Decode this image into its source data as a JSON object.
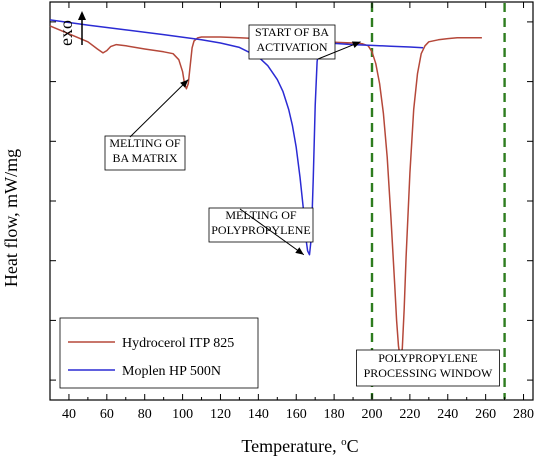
{
  "chart_data": {
    "type": "line",
    "xlabel": "Temperature, ",
    "xlabel_unit": "C",
    "xlabel_degree": "o",
    "ylabel": "Heat flow, mW/mg",
    "exo_label": "exo",
    "xlim": [
      30,
      285
    ],
    "ylim": [
      0,
      10
    ],
    "x_ticks": [
      40,
      60,
      80,
      100,
      120,
      140,
      160,
      180,
      200,
      220,
      240,
      260,
      280
    ],
    "y_ticks_unlabeled": true,
    "grid": false,
    "legend_position": "bottom-left",
    "series": [
      {
        "name": "Hydrocerol ITP 825",
        "color": "#b5483a",
        "x": [
          30,
          40,
          50,
          55,
          58,
          60,
          62,
          65,
          70,
          80,
          90,
          95,
          98,
          100,
          101,
          102,
          103,
          104,
          105,
          106,
          108,
          110,
          120,
          130,
          140,
          150,
          160,
          170,
          180,
          190,
          195,
          198,
          200,
          202,
          204,
          206,
          208,
          210,
          212,
          213,
          214,
          215,
          216,
          217,
          218,
          220,
          222,
          224,
          226,
          228,
          230,
          235,
          240,
          245,
          250,
          255,
          258
        ],
        "y": [
          9.4,
          9.2,
          9.0,
          8.82,
          8.72,
          8.78,
          8.88,
          8.93,
          8.9,
          8.82,
          8.75,
          8.7,
          8.55,
          8.25,
          7.95,
          7.82,
          7.95,
          8.4,
          8.85,
          9.02,
          9.1,
          9.12,
          9.12,
          9.1,
          9.08,
          9.05,
          9.03,
          9.01,
          8.99,
          8.97,
          8.95,
          8.9,
          8.75,
          8.45,
          7.95,
          7.2,
          6.1,
          4.6,
          2.9,
          2.0,
          1.35,
          1.05,
          1.3,
          2.3,
          3.6,
          5.7,
          7.3,
          8.2,
          8.7,
          8.9,
          9.0,
          9.05,
          9.08,
          9.1,
          9.1,
          9.1,
          9.1
        ]
      },
      {
        "name": "Moplen HP 500N",
        "color": "#2b2bd4",
        "x": [
          30,
          50,
          70,
          90,
          110,
          120,
          130,
          140,
          145,
          150,
          153,
          156,
          158,
          160,
          162,
          164,
          165,
          166,
          167,
          168,
          169,
          170,
          171,
          172,
          174,
          176,
          178,
          180,
          190,
          200,
          210,
          220,
          227
        ],
        "y": [
          9.55,
          9.42,
          9.3,
          9.18,
          9.05,
          8.97,
          8.86,
          8.62,
          8.4,
          8.05,
          7.75,
          7.3,
          6.9,
          6.35,
          5.6,
          4.7,
          4.1,
          3.75,
          3.65,
          4.1,
          5.6,
          7.4,
          8.5,
          8.82,
          8.92,
          8.95,
          8.96,
          8.96,
          8.93,
          8.91,
          8.89,
          8.87,
          8.85
        ]
      }
    ],
    "vertical_lines": [
      {
        "x": 200,
        "color": "#2e7d1f",
        "style": "dashed"
      },
      {
        "x": 270,
        "color": "#2e7d1f",
        "style": "dashed"
      }
    ],
    "annotations": [
      {
        "id": "ba-activation",
        "lines": [
          "START OF BA",
          "ACTIVATION"
        ],
        "target": [
          194,
          9.0
        ]
      },
      {
        "id": "ba-matrix",
        "lines": [
          "MELTING OF",
          "BA MATRIX"
        ],
        "target": [
          103,
          8.05
        ]
      },
      {
        "id": "polypropylene",
        "lines": [
          "MELTING OF",
          "POLYPROPYLENE"
        ],
        "target": [
          164,
          3.65
        ]
      },
      {
        "id": "window",
        "lines": [
          "POLYPROPYLENE",
          "PROCESSING WINDOW"
        ],
        "target": null
      }
    ]
  }
}
